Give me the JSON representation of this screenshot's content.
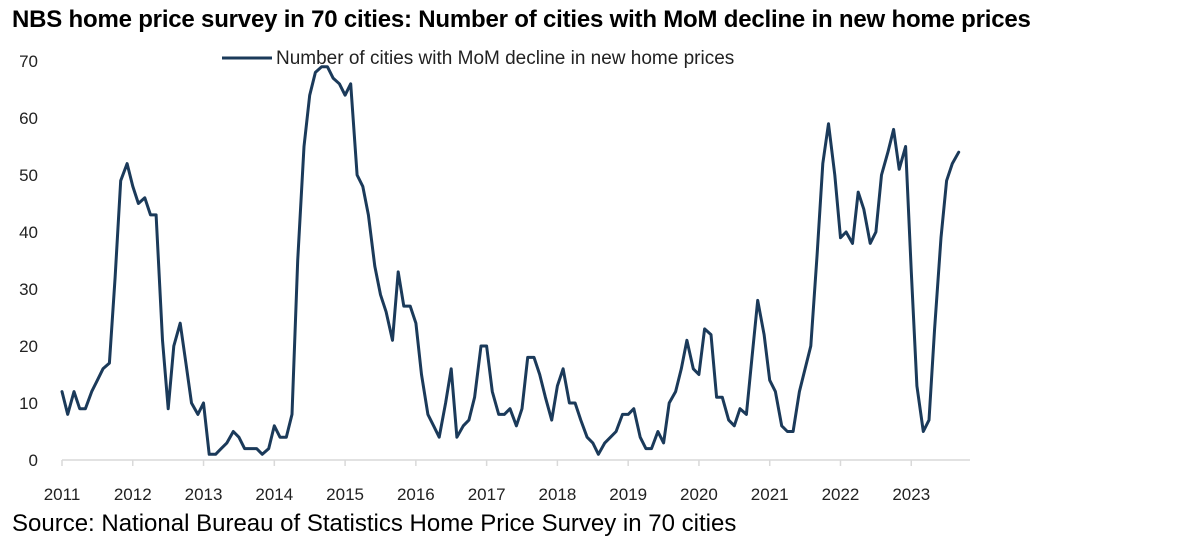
{
  "header": {
    "title": "NBS home price survey in 70 cities: Number of cities with MoM decline in new home prices"
  },
  "footer": {
    "source": "Source: National Bureau of Statistics Home Price Survey in 70 cities"
  },
  "chart_data": {
    "type": "line",
    "title": "NBS home price survey in 70 cities: Number of cities with MoM decline in new home prices",
    "xlabel": "",
    "ylabel": "",
    "ylim": [
      0,
      70
    ],
    "xlim": [
      2011,
      2023.83
    ],
    "yticks": [
      "0",
      "10",
      "20",
      "30",
      "40",
      "50",
      "60",
      "70"
    ],
    "xticks": [
      "2011",
      "2012",
      "2013",
      "2014",
      "2015",
      "2016",
      "2017",
      "2018",
      "2019",
      "2020",
      "2021",
      "2022",
      "2023"
    ],
    "grid": false,
    "legend_position": "top",
    "line_color": "#1b3a5a",
    "series": [
      {
        "name": "Number of cities with MoM decline in new home prices",
        "x": [
          2011.0,
          2011.08,
          2011.17,
          2011.25,
          2011.33,
          2011.42,
          2011.5,
          2011.58,
          2011.67,
          2011.75,
          2011.83,
          2011.92,
          2012.0,
          2012.08,
          2012.17,
          2012.25,
          2012.33,
          2012.42,
          2012.5,
          2012.58,
          2012.67,
          2012.75,
          2012.83,
          2012.92,
          2013.0,
          2013.08,
          2013.17,
          2013.25,
          2013.33,
          2013.42,
          2013.5,
          2013.58,
          2013.67,
          2013.75,
          2013.83,
          2013.92,
          2014.0,
          2014.08,
          2014.17,
          2014.25,
          2014.33,
          2014.42,
          2014.5,
          2014.58,
          2014.67,
          2014.75,
          2014.83,
          2014.92,
          2015.0,
          2015.08,
          2015.17,
          2015.25,
          2015.33,
          2015.42,
          2015.5,
          2015.58,
          2015.67,
          2015.75,
          2015.83,
          2015.92,
          2016.0,
          2016.08,
          2016.17,
          2016.25,
          2016.33,
          2016.42,
          2016.5,
          2016.58,
          2016.67,
          2016.75,
          2016.83,
          2016.92,
          2017.0,
          2017.08,
          2017.17,
          2017.25,
          2017.33,
          2017.42,
          2017.5,
          2017.58,
          2017.67,
          2017.75,
          2017.83,
          2017.92,
          2018.0,
          2018.08,
          2018.17,
          2018.25,
          2018.33,
          2018.42,
          2018.5,
          2018.58,
          2018.67,
          2018.75,
          2018.83,
          2018.92,
          2019.0,
          2019.08,
          2019.17,
          2019.25,
          2019.33,
          2019.42,
          2019.5,
          2019.58,
          2019.67,
          2019.75,
          2019.83,
          2019.92,
          2020.0,
          2020.08,
          2020.17,
          2020.25,
          2020.33,
          2020.42,
          2020.5,
          2020.58,
          2020.67,
          2020.75,
          2020.83,
          2020.92,
          2021.0,
          2021.08,
          2021.17,
          2021.25,
          2021.33,
          2021.42,
          2021.5,
          2021.58,
          2021.67,
          2021.75,
          2021.83,
          2021.92,
          2022.0,
          2022.08,
          2022.17,
          2022.25,
          2022.33,
          2022.42,
          2022.5,
          2022.58,
          2022.67,
          2022.75,
          2022.83,
          2022.92,
          2023.0,
          2023.08,
          2023.17,
          2023.25,
          2023.33,
          2023.42,
          2023.5,
          2023.58,
          2023.67
        ],
        "values": [
          12,
          8,
          12,
          9,
          9,
          12,
          14,
          16,
          17,
          32,
          49,
          52,
          48,
          45,
          46,
          43,
          43,
          21,
          9,
          20,
          24,
          17,
          10,
          8,
          10,
          1,
          1,
          2,
          3,
          5,
          4,
          2,
          2,
          2,
          1,
          2,
          6,
          4,
          4,
          8,
          35,
          55,
          64,
          68,
          69,
          69,
          67,
          66,
          64,
          66,
          50,
          48,
          43,
          34,
          29,
          26,
          21,
          33,
          27,
          27,
          24,
          15,
          8,
          6,
          4,
          10,
          16,
          4,
          6,
          7,
          11,
          20,
          20,
          12,
          8,
          8,
          9,
          6,
          9,
          18,
          18,
          15,
          11,
          7,
          13,
          16,
          10,
          10,
          7,
          4,
          3,
          1,
          3,
          4,
          5,
          8,
          8,
          9,
          4,
          2,
          2,
          5,
          3,
          10,
          12,
          16,
          21,
          16,
          15,
          23,
          22,
          11,
          11,
          7,
          6,
          9,
          8,
          18,
          28,
          22,
          14,
          12,
          6,
          5,
          5,
          12,
          16,
          20,
          36,
          52,
          59,
          50,
          39,
          40,
          38,
          47,
          44,
          38,
          40,
          50,
          54,
          58,
          51,
          55,
          33,
          13,
          5,
          7,
          23,
          39,
          49,
          52,
          54
        ]
      }
    ]
  }
}
